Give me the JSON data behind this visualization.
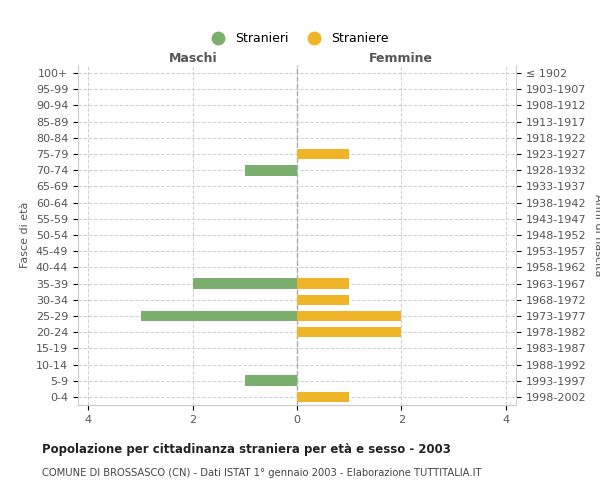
{
  "age_groups": [
    "0-4",
    "5-9",
    "10-14",
    "15-19",
    "20-24",
    "25-29",
    "30-34",
    "35-39",
    "40-44",
    "45-49",
    "50-54",
    "55-59",
    "60-64",
    "65-69",
    "70-74",
    "75-79",
    "80-84",
    "85-89",
    "90-94",
    "95-99",
    "100+"
  ],
  "birth_years": [
    "1998-2002",
    "1993-1997",
    "1988-1992",
    "1983-1987",
    "1978-1982",
    "1973-1977",
    "1968-1972",
    "1963-1967",
    "1958-1962",
    "1953-1957",
    "1948-1952",
    "1943-1947",
    "1938-1942",
    "1933-1937",
    "1928-1932",
    "1923-1927",
    "1918-1922",
    "1913-1917",
    "1908-1912",
    "1903-1907",
    "≤ 1902"
  ],
  "males": [
    0,
    1,
    0,
    0,
    0,
    3,
    0,
    2,
    0,
    0,
    0,
    0,
    0,
    0,
    1,
    0,
    0,
    0,
    0,
    0,
    0
  ],
  "females": [
    1,
    0,
    0,
    0,
    2,
    2,
    1,
    1,
    0,
    0,
    0,
    0,
    0,
    0,
    0,
    1,
    0,
    0,
    0,
    0,
    0
  ],
  "male_color": "#7aaf6e",
  "female_color": "#f0b429",
  "title": "Popolazione per cittadinanza straniera per età e sesso - 2003",
  "subtitle": "COMUNE DI BROSSASCO (CN) - Dati ISTAT 1° gennaio 2003 - Elaborazione TUTTITALIA.IT",
  "legend_male": "Stranieri",
  "legend_female": "Straniere",
  "xlabel_left": "Maschi",
  "xlabel_right": "Femmine",
  "ylabel_left": "Fasce di età",
  "ylabel_right": "Anni di nascita",
  "xlim": 4.2,
  "background_color": "#ffffff",
  "grid_color": "#d0d0d0"
}
